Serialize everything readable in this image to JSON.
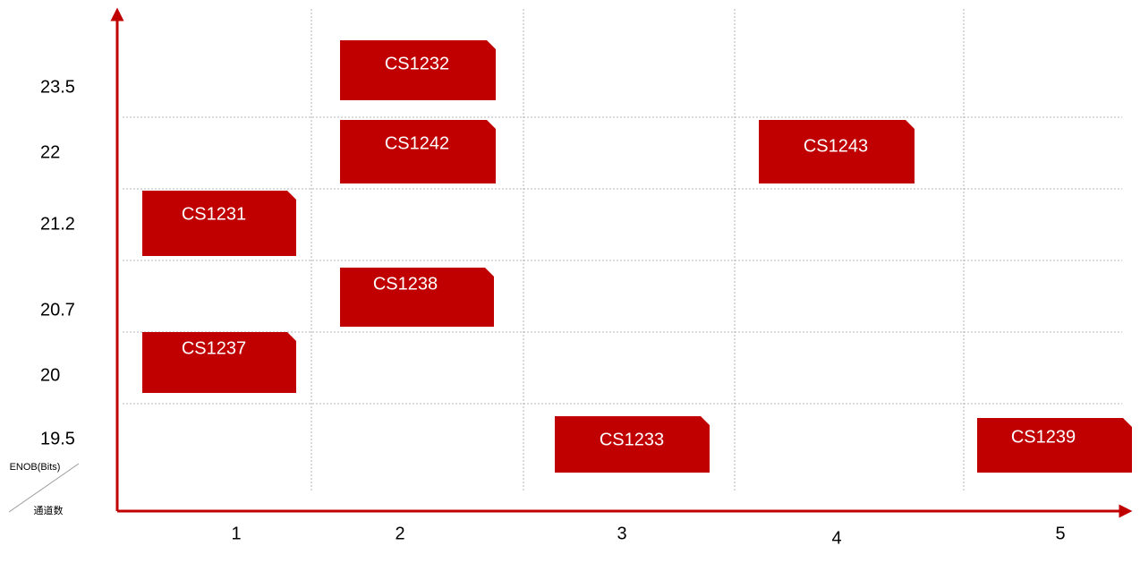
{
  "axis": {
    "y_title": "ENOB(Bits)",
    "x_title": "通道数"
  },
  "y_labels": [
    "23.5",
    "22",
    "21.2",
    "20.7",
    "20",
    "19.5"
  ],
  "x_labels": [
    "1",
    "2",
    "3",
    "4",
    "5"
  ],
  "products": [
    "CS1232",
    "CS1242",
    "CS1243",
    "CS1231",
    "CS1238",
    "CS1237",
    "CS1233",
    "CS1239"
  ]
}
